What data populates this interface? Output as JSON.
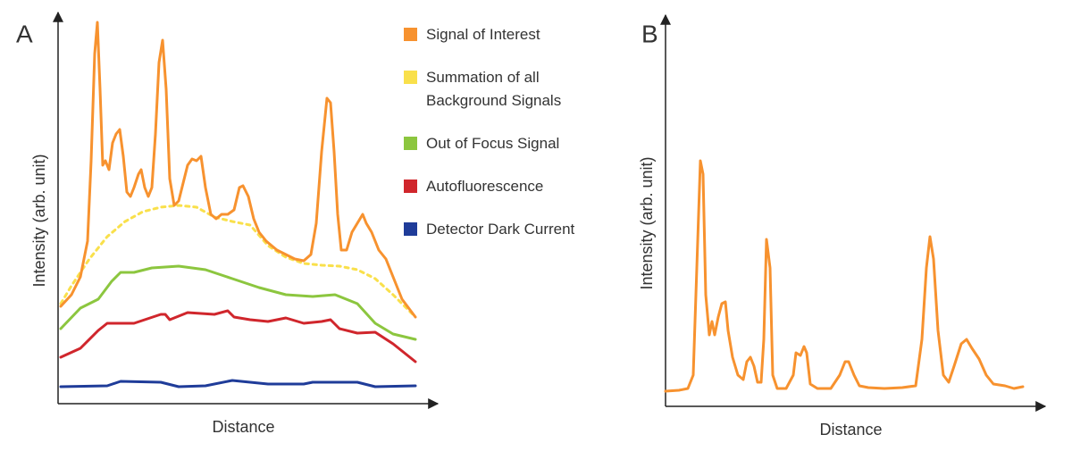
{
  "chart_data": [
    {
      "type": "line",
      "label": "A",
      "xlabel": "Distance",
      "ylabel": "Intensity (arb. unit)",
      "xlim": [
        0,
        415
      ],
      "ylim": [
        0,
        430
      ],
      "series": [
        {
          "name": "Signal of Interest",
          "color": "#f7922f",
          "x": [
            3,
            15,
            25,
            33,
            37,
            41,
            44,
            47,
            50,
            53,
            57,
            61,
            65,
            69,
            73,
            77,
            81,
            85,
            90,
            93,
            97,
            101,
            105,
            109,
            113,
            117,
            121,
            125,
            130,
            135,
            140,
            145,
            150,
            155,
            160,
            165,
            171,
            177,
            183,
            190,
            197,
            203,
            207,
            213,
            219,
            225,
            233,
            245,
            255,
            265,
            275,
            283,
            289,
            295,
            301,
            305,
            309,
            313,
            317,
            323,
            329,
            335,
            341,
            345,
            351,
            359,
            367,
            375,
            385,
            400
          ],
          "values": [
            109,
            122,
            142,
            182,
            272,
            392,
            427,
            352,
            267,
            272,
            262,
            292,
            302,
            307,
            277,
            237,
            232,
            242,
            257,
            262,
            242,
            232,
            242,
            302,
            382,
            407,
            352,
            252,
            222,
            227,
            247,
            267,
            274,
            272,
            277,
            242,
            212,
            207,
            212,
            212,
            217,
            242,
            244,
            232,
            207,
            192,
            182,
            172,
            167,
            162,
            160,
            167,
            202,
            282,
            342,
            337,
            282,
            212,
            172,
            172,
            192,
            202,
            212,
            202,
            192,
            172,
            162,
            142,
            117,
            97
          ]
        },
        {
          "name": "Summation of all Background Signals",
          "color": "#f9e04b",
          "dashed": true,
          "x": [
            3,
            15,
            35,
            55,
            75,
            95,
            115,
            135,
            155,
            175,
            195,
            215,
            235,
            255,
            275,
            295,
            315,
            335,
            355,
            375,
            400
          ],
          "values": [
            112,
            132,
            162,
            187,
            204,
            215,
            220,
            222,
            220,
            209,
            204,
            200,
            177,
            164,
            157,
            155,
            154,
            150,
            140,
            122,
            97
          ]
        },
        {
          "name": "Out of Focus Signal",
          "color": "#8cc63f",
          "x": [
            3,
            25,
            45,
            60,
            70,
            85,
            105,
            135,
            165,
            195,
            225,
            255,
            285,
            310,
            335,
            355,
            375,
            400
          ],
          "values": [
            84,
            107,
            117,
            137,
            147,
            147,
            152,
            154,
            150,
            140,
            130,
            122,
            120,
            122,
            112,
            90,
            78,
            72
          ]
        },
        {
          "name": "Autofluorescence",
          "color": "#d0262c",
          "x": [
            3,
            25,
            45,
            55,
            85,
            115,
            120,
            125,
            145,
            175,
            190,
            197,
            215,
            235,
            255,
            275,
            295,
            305,
            315,
            335,
            355,
            375,
            400
          ],
          "values": [
            52,
            62,
            82,
            90,
            90,
            100,
            100,
            94,
            102,
            100,
            104,
            97,
            94,
            92,
            96,
            90,
            92,
            94,
            84,
            79,
            80,
            67,
            47
          ]
        },
        {
          "name": "Detector Dark Current",
          "color": "#1f3c99",
          "x": [
            3,
            55,
            70,
            115,
            135,
            165,
            195,
            235,
            275,
            285,
            335,
            355,
            400
          ],
          "values": [
            19,
            20,
            25,
            24,
            19,
            20,
            26,
            22,
            22,
            24,
            24,
            19,
            20
          ]
        }
      ]
    },
    {
      "type": "line",
      "label": "B",
      "xlabel": "Distance",
      "ylabel": "Intensity (arb. unit)",
      "xlim": [
        0,
        415
      ],
      "ylim": [
        0,
        430
      ],
      "series": [
        {
          "color": "#f7922f",
          "x": [
            0,
            15,
            25,
            31,
            35,
            39,
            42,
            45,
            49,
            52,
            55,
            59,
            63,
            67,
            70,
            75,
            81,
            87,
            91,
            95,
            99,
            103,
            107,
            110,
            113,
            117,
            120,
            125,
            135,
            143,
            146,
            151,
            155,
            158,
            162,
            170,
            185,
            195,
            201,
            205,
            211,
            217,
            227,
            245,
            265,
            280,
            287,
            292,
            296,
            300,
            305,
            311,
            317,
            323,
            331,
            337,
            343,
            351,
            359,
            367,
            380,
            390,
            400
          ],
          "values": [
            17,
            18,
            20,
            35,
            155,
            275,
            260,
            125,
            80,
            95,
            80,
            100,
            115,
            117,
            85,
            55,
            35,
            30,
            50,
            55,
            45,
            27,
            27,
            75,
            187,
            155,
            35,
            20,
            20,
            35,
            60,
            57,
            67,
            60,
            25,
            20,
            20,
            35,
            50,
            50,
            35,
            23,
            21,
            20,
            21,
            23,
            75,
            155,
            190,
            165,
            85,
            35,
            27,
            45,
            70,
            75,
            65,
            53,
            35,
            25,
            23,
            20,
            22
          ]
        }
      ]
    }
  ]
}
